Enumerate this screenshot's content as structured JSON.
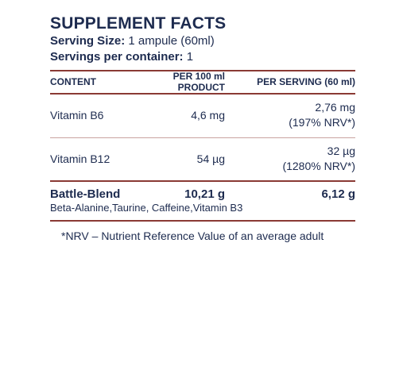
{
  "title": "SUPPLEMENT FACTS",
  "serving_size": {
    "label": "Serving Size:",
    "value": "1 ampule (60ml)"
  },
  "servings_per_container": {
    "label": "Servings per container:",
    "value": "1"
  },
  "columns": {
    "content": "CONTENT",
    "per_100ml": "PER 100 ml PRODUCT",
    "per_serving": "PER SERVING (60 ml)"
  },
  "rows": [
    {
      "name": "Vitamin B6",
      "per_100ml": "4,6 mg",
      "per_serving": "2,76 mg",
      "nrv": "(197% NRV*)"
    },
    {
      "name": "Vitamin B12",
      "per_100ml": "54 µg",
      "per_serving": "32 µg",
      "nrv": "(1280% NRV*)"
    }
  ],
  "blend": {
    "name": "Battle-Blend",
    "per_100ml": "10,21 g",
    "per_serving": "6,12 g",
    "ingredients": "Beta-Alanine,Taurine, Caffeine,Vitamin B3"
  },
  "footnote": "*NRV – Nutrient Reference Value of an average adult"
}
